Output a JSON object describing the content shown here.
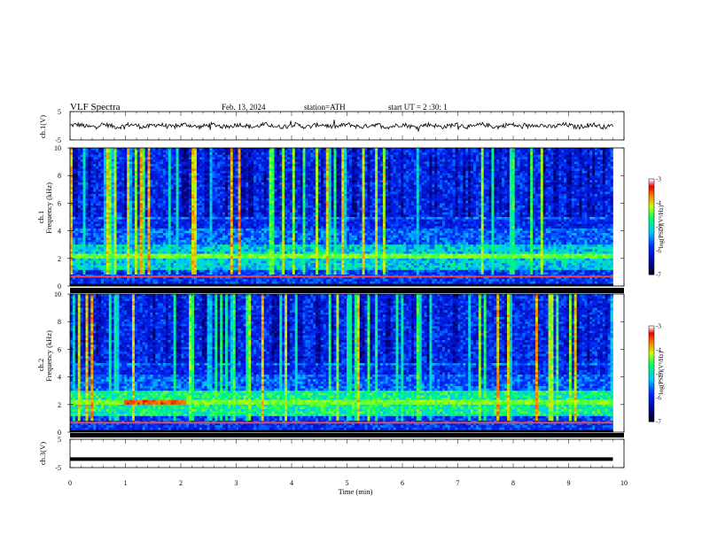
{
  "header": {
    "title": "VLF  Spectra",
    "date": "Feb. 13, 2024",
    "station": "station=ATH",
    "start_ut": "start  UT  =   2  :30: 1"
  },
  "colors": {
    "ink": "#000000",
    "grid": "#cccccc",
    "background_band": "#0a1a80"
  },
  "chart_data": [
    {
      "type": "line",
      "panel": "ch1-voltage",
      "ylabel": "ch.1(V)",
      "ylim": [
        -5,
        5
      ],
      "y_ticks": [
        "5",
        "-5"
      ],
      "xlim": [
        0,
        10
      ],
      "series": [
        {
          "values_note_level": 0
        }
      ],
      "x": [
        0,
        9.8
      ],
      "y_level": 0
    },
    {
      "type": "heatmap",
      "panel": "ch1-spectrogram",
      "ylabel": "ch.1\nFrequency (kHz)",
      "ylabel_line1": "ch.1",
      "ylabel_line2": "Frequency  (kHz)",
      "ylim": [
        0,
        10
      ],
      "xlim": [
        0,
        10
      ],
      "y_ticks": [
        "10",
        "8",
        "6",
        "4",
        "2",
        "0"
      ],
      "data_end_min": 9.8,
      "colorbar": {
        "label": "log(PSD)(V²/Hz)",
        "range": [
          -7,
          -3
        ],
        "ticks": [
          "-3",
          "-4",
          "-5",
          "-6",
          "-7"
        ]
      }
    },
    {
      "type": "heatmap",
      "panel": "ch2-spectrogram",
      "ylabel_line1": "ch.2",
      "ylabel_line2": "Frequency  (kHz)",
      "ylim": [
        0,
        10
      ],
      "xlim": [
        0,
        10
      ],
      "y_ticks": [
        "10",
        "8",
        "6",
        "4",
        "2",
        "0"
      ],
      "data_end_min": 9.8,
      "colorbar": {
        "label": "log(PSD)(V²/Hz)",
        "range": [
          -7,
          -3
        ],
        "ticks": [
          "-3",
          "-4",
          "-5",
          "-6",
          "-7"
        ]
      }
    },
    {
      "type": "line",
      "panel": "ch3-voltage",
      "ylabel": "ch.3(V)",
      "ylim": [
        -5,
        5
      ],
      "y_ticks": [
        "5",
        "-5"
      ],
      "xlim": [
        0,
        10
      ],
      "x": [
        0,
        9.8
      ],
      "y_level": -2
    }
  ],
  "x_axis": {
    "label": "Time  (min)",
    "ticks": [
      "0",
      "1",
      "2",
      "3",
      "4",
      "5",
      "6",
      "7",
      "8",
      "9",
      "10"
    ]
  }
}
